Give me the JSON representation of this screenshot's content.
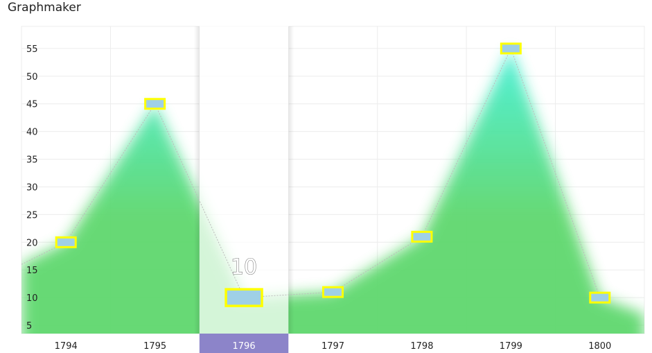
{
  "app": {
    "title": "Graphmaker"
  },
  "chart_data": {
    "type": "area",
    "title": "",
    "xlabel": "",
    "ylabel": "",
    "categories": [
      "1794",
      "1795",
      "1796",
      "1797",
      "1798",
      "1799",
      "1800"
    ],
    "series": [
      {
        "values": [
          20,
          45,
          10,
          11,
          21,
          55,
          10
        ]
      }
    ],
    "y_ticks": [
      "5",
      "10",
      "15",
      "20",
      "25",
      "30",
      "35",
      "40",
      "45",
      "50",
      "55"
    ],
    "ylim": [
      3.5,
      59
    ],
    "grid": true,
    "highlighted_category": "1796",
    "highlighted_value_label": "10",
    "colors": {
      "area_base": "#5fd86e",
      "area_peak": "#48f0d8",
      "marker_fill": "#9fd0e6",
      "marker_border": "#ffff00",
      "highlight_band": "#8c84c9",
      "grid": "#ececec",
      "line": "#bbbbbb"
    }
  }
}
